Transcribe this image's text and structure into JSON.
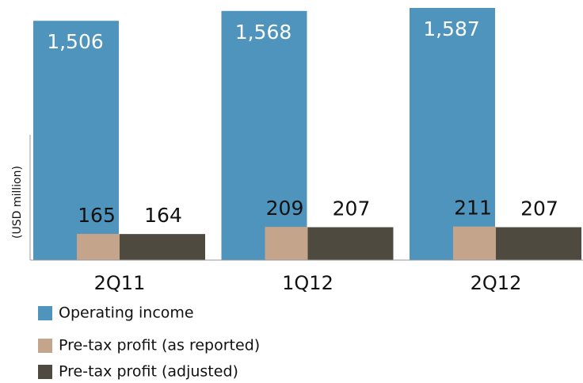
{
  "chart_data": {
    "type": "bar",
    "y_label": "(USD million)",
    "categories": [
      "2Q11",
      "1Q12",
      "2Q12"
    ],
    "series": [
      {
        "name": "Operating income",
        "color": "#4f94bd",
        "values": [
          1506,
          1568,
          1587
        ],
        "value_labels": [
          "1,506",
          "1,568",
          "1,587"
        ]
      },
      {
        "name": "Pre-tax profit (as reported)",
        "color": "#c4a48a",
        "values": [
          165,
          209,
          211
        ]
      },
      {
        "name": "Pre-tax profit (adjusted)",
        "color": "#4f4a40",
        "values": [
          164,
          207,
          207
        ]
      }
    ]
  }
}
